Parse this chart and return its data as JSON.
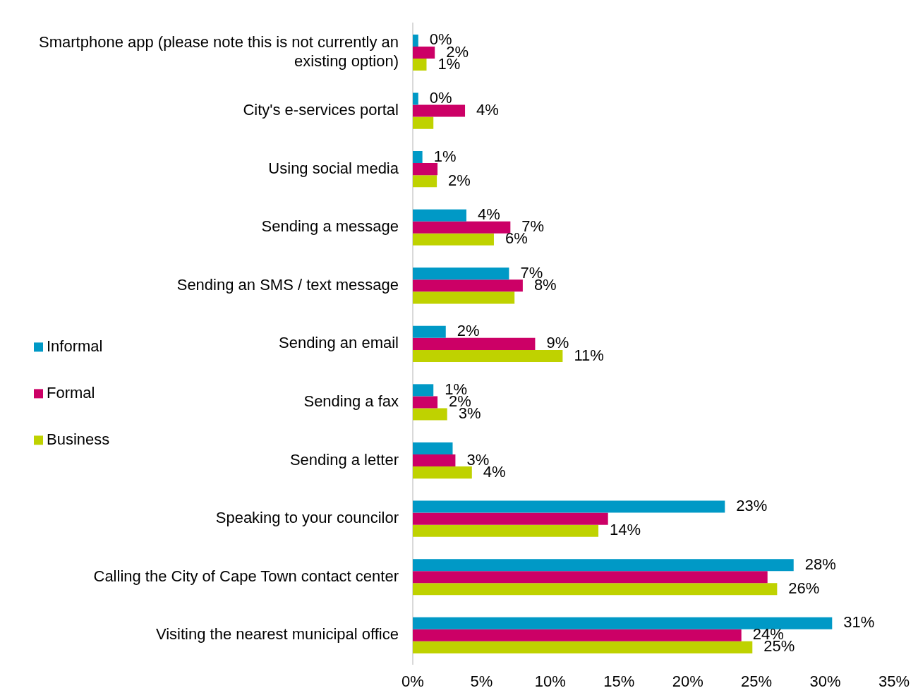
{
  "chart_data": {
    "type": "bar",
    "orientation": "horizontal",
    "categories": [
      "Smartphone app (please note this is not currently an existing option)",
      "City's e-services portal",
      "Using social media",
      "Sending a message",
      "Sending an SMS / text message",
      "Sending an email",
      "Sending a fax",
      "Sending a letter",
      "Speaking to your councilor",
      "Calling the City of Cape Town contact center",
      "Visiting the nearest municipal office"
    ],
    "series": [
      {
        "name": "Informal",
        "color": "#0099c6",
        "values": [
          0.4,
          0.4,
          0.7,
          3.9,
          7.0,
          2.4,
          1.5,
          2.9,
          22.7,
          27.7,
          30.5
        ],
        "value_labels": [
          "0%",
          "0%",
          "1%",
          "4%",
          "7%",
          "2%",
          "1%",
          null,
          "23%",
          "28%",
          "31%"
        ]
      },
      {
        "name": "Formal",
        "color": "#cc0066",
        "values": [
          1.6,
          3.8,
          1.8,
          7.1,
          8.0,
          8.9,
          1.8,
          3.1,
          14.2,
          25.8,
          23.9
        ],
        "value_labels": [
          "2%",
          "4%",
          null,
          "7%",
          "8%",
          "9%",
          "2%",
          "3%",
          null,
          null,
          "24%"
        ]
      },
      {
        "name": "Business",
        "color": "#bfd200",
        "values": [
          1.0,
          1.5,
          1.75,
          5.9,
          7.4,
          10.9,
          2.5,
          4.3,
          13.5,
          26.5,
          24.7
        ],
        "value_labels": [
          "1%",
          null,
          "2%",
          "6%",
          null,
          "11%",
          "3%",
          "4%",
          "14%",
          "26%",
          "25%"
        ]
      }
    ],
    "xlim": [
      0,
      35
    ],
    "xticks": [
      {
        "value": 0,
        "label": "0%"
      },
      {
        "value": 5,
        "label": "5%"
      },
      {
        "value": 10,
        "label": "10%"
      },
      {
        "value": 15,
        "label": "15%"
      },
      {
        "value": 20,
        "label": "20%"
      },
      {
        "value": 25,
        "label": "25%"
      },
      {
        "value": 30,
        "label": "30%"
      },
      {
        "value": 35,
        "label": "35%"
      }
    ],
    "grid": false,
    "legend": "left"
  }
}
